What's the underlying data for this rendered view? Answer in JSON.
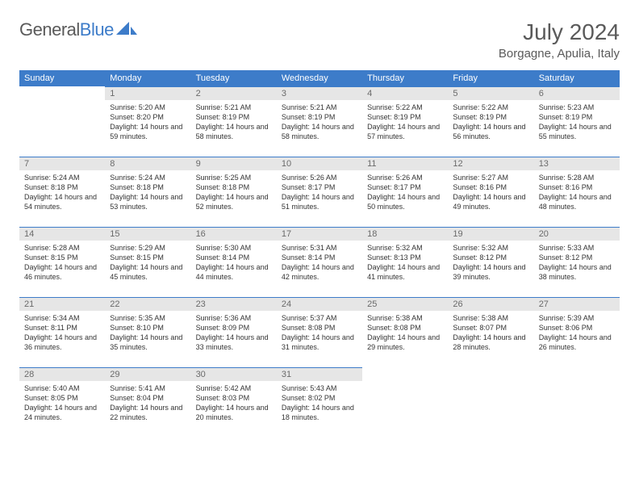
{
  "logo": {
    "text_gray": "General",
    "text_blue": "Blue"
  },
  "month_title": "July 2024",
  "location": "Borgagne, Apulia, Italy",
  "colors": {
    "header_bg": "#3d7cc9",
    "daynum_bg": "#e6e6e6",
    "text_gray": "#5a5a5a"
  },
  "weekdays": [
    "Sunday",
    "Monday",
    "Tuesday",
    "Wednesday",
    "Thursday",
    "Friday",
    "Saturday"
  ],
  "weeks": [
    [
      null,
      {
        "n": "1",
        "sr": "5:20 AM",
        "ss": "8:20 PM",
        "dl": "14 hours and 59 minutes."
      },
      {
        "n": "2",
        "sr": "5:21 AM",
        "ss": "8:19 PM",
        "dl": "14 hours and 58 minutes."
      },
      {
        "n": "3",
        "sr": "5:21 AM",
        "ss": "8:19 PM",
        "dl": "14 hours and 58 minutes."
      },
      {
        "n": "4",
        "sr": "5:22 AM",
        "ss": "8:19 PM",
        "dl": "14 hours and 57 minutes."
      },
      {
        "n": "5",
        "sr": "5:22 AM",
        "ss": "8:19 PM",
        "dl": "14 hours and 56 minutes."
      },
      {
        "n": "6",
        "sr": "5:23 AM",
        "ss": "8:19 PM",
        "dl": "14 hours and 55 minutes."
      }
    ],
    [
      {
        "n": "7",
        "sr": "5:24 AM",
        "ss": "8:18 PM",
        "dl": "14 hours and 54 minutes."
      },
      {
        "n": "8",
        "sr": "5:24 AM",
        "ss": "8:18 PM",
        "dl": "14 hours and 53 minutes."
      },
      {
        "n": "9",
        "sr": "5:25 AM",
        "ss": "8:18 PM",
        "dl": "14 hours and 52 minutes."
      },
      {
        "n": "10",
        "sr": "5:26 AM",
        "ss": "8:17 PM",
        "dl": "14 hours and 51 minutes."
      },
      {
        "n": "11",
        "sr": "5:26 AM",
        "ss": "8:17 PM",
        "dl": "14 hours and 50 minutes."
      },
      {
        "n": "12",
        "sr": "5:27 AM",
        "ss": "8:16 PM",
        "dl": "14 hours and 49 minutes."
      },
      {
        "n": "13",
        "sr": "5:28 AM",
        "ss": "8:16 PM",
        "dl": "14 hours and 48 minutes."
      }
    ],
    [
      {
        "n": "14",
        "sr": "5:28 AM",
        "ss": "8:15 PM",
        "dl": "14 hours and 46 minutes."
      },
      {
        "n": "15",
        "sr": "5:29 AM",
        "ss": "8:15 PM",
        "dl": "14 hours and 45 minutes."
      },
      {
        "n": "16",
        "sr": "5:30 AM",
        "ss": "8:14 PM",
        "dl": "14 hours and 44 minutes."
      },
      {
        "n": "17",
        "sr": "5:31 AM",
        "ss": "8:14 PM",
        "dl": "14 hours and 42 minutes."
      },
      {
        "n": "18",
        "sr": "5:32 AM",
        "ss": "8:13 PM",
        "dl": "14 hours and 41 minutes."
      },
      {
        "n": "19",
        "sr": "5:32 AM",
        "ss": "8:12 PM",
        "dl": "14 hours and 39 minutes."
      },
      {
        "n": "20",
        "sr": "5:33 AM",
        "ss": "8:12 PM",
        "dl": "14 hours and 38 minutes."
      }
    ],
    [
      {
        "n": "21",
        "sr": "5:34 AM",
        "ss": "8:11 PM",
        "dl": "14 hours and 36 minutes."
      },
      {
        "n": "22",
        "sr": "5:35 AM",
        "ss": "8:10 PM",
        "dl": "14 hours and 35 minutes."
      },
      {
        "n": "23",
        "sr": "5:36 AM",
        "ss": "8:09 PM",
        "dl": "14 hours and 33 minutes."
      },
      {
        "n": "24",
        "sr": "5:37 AM",
        "ss": "8:08 PM",
        "dl": "14 hours and 31 minutes."
      },
      {
        "n": "25",
        "sr": "5:38 AM",
        "ss": "8:08 PM",
        "dl": "14 hours and 29 minutes."
      },
      {
        "n": "26",
        "sr": "5:38 AM",
        "ss": "8:07 PM",
        "dl": "14 hours and 28 minutes."
      },
      {
        "n": "27",
        "sr": "5:39 AM",
        "ss": "8:06 PM",
        "dl": "14 hours and 26 minutes."
      }
    ],
    [
      {
        "n": "28",
        "sr": "5:40 AM",
        "ss": "8:05 PM",
        "dl": "14 hours and 24 minutes."
      },
      {
        "n": "29",
        "sr": "5:41 AM",
        "ss": "8:04 PM",
        "dl": "14 hours and 22 minutes."
      },
      {
        "n": "30",
        "sr": "5:42 AM",
        "ss": "8:03 PM",
        "dl": "14 hours and 20 minutes."
      },
      {
        "n": "31",
        "sr": "5:43 AM",
        "ss": "8:02 PM",
        "dl": "14 hours and 18 minutes."
      },
      null,
      null,
      null
    ]
  ],
  "labels": {
    "sunrise": "Sunrise: ",
    "sunset": "Sunset: ",
    "daylight": "Daylight: "
  }
}
